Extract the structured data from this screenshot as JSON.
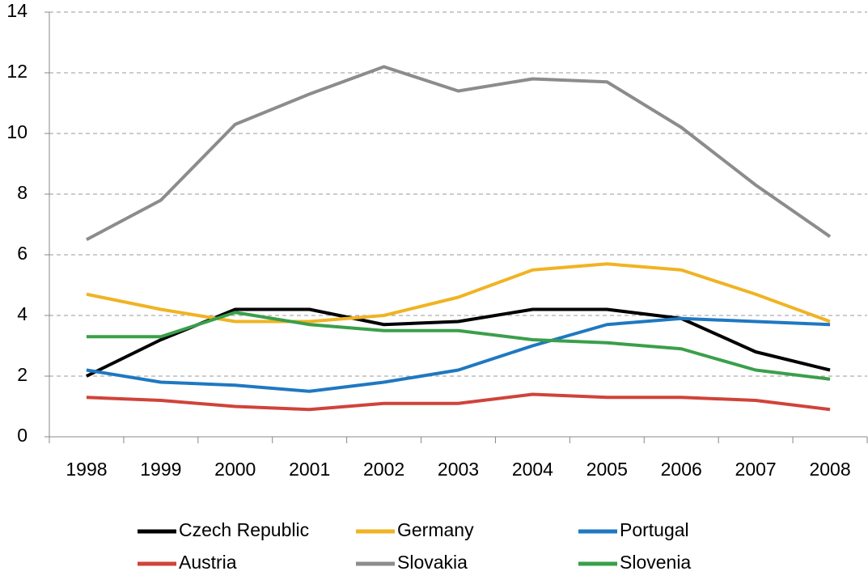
{
  "chart_data": {
    "type": "line",
    "categories": [
      "1998",
      "1999",
      "2000",
      "2001",
      "2002",
      "2003",
      "2004",
      "2005",
      "2006",
      "2007",
      "2008"
    ],
    "series": [
      {
        "name": "Czech Republic",
        "color": "#000000",
        "values": [
          2.0,
          3.2,
          4.2,
          4.2,
          3.7,
          3.8,
          4.2,
          4.2,
          3.9,
          2.8,
          2.2
        ]
      },
      {
        "name": "Germany",
        "color": "#f0b323",
        "values": [
          4.7,
          4.2,
          3.8,
          3.8,
          4.0,
          4.6,
          5.5,
          5.7,
          5.5,
          4.7,
          3.8
        ]
      },
      {
        "name": "Portugal",
        "color": "#1f78c1",
        "values": [
          2.2,
          1.8,
          1.7,
          1.5,
          1.8,
          2.2,
          3.0,
          3.7,
          3.9,
          3.8,
          3.7
        ]
      },
      {
        "name": "Austria",
        "color": "#d0433a",
        "values": [
          1.3,
          1.2,
          1.0,
          0.9,
          1.1,
          1.1,
          1.4,
          1.3,
          1.3,
          1.2,
          0.9
        ]
      },
      {
        "name": "Slovakia",
        "color": "#8c8c8c",
        "values": [
          6.5,
          7.8,
          10.3,
          11.3,
          12.2,
          11.4,
          11.8,
          11.7,
          10.2,
          8.3,
          6.6
        ]
      },
      {
        "name": "Slovenia",
        "color": "#3a9f4a",
        "values": [
          3.3,
          3.3,
          4.1,
          3.7,
          3.5,
          3.5,
          3.2,
          3.1,
          2.9,
          2.2,
          1.9
        ]
      }
    ],
    "ylim": [
      0,
      14
    ],
    "yticks": [
      0,
      2,
      4,
      6,
      8,
      10,
      12,
      14
    ],
    "grid": true,
    "legend": "bottom"
  }
}
